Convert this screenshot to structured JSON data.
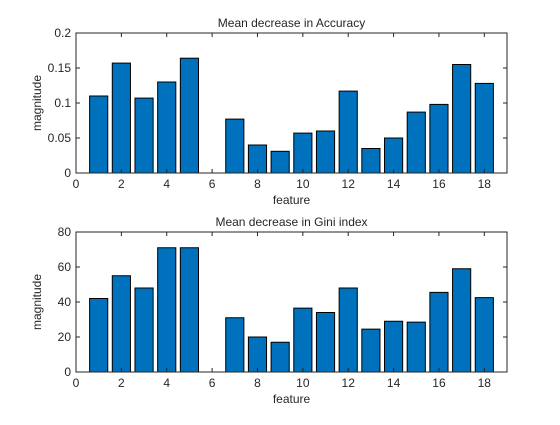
{
  "chart_data": [
    {
      "type": "bar",
      "title": "Mean decrease in Accuracy",
      "xlabel": "feature",
      "ylabel": "magnitude",
      "xlim": [
        0,
        19
      ],
      "ylim": [
        0,
        0.2
      ],
      "xticks": [
        0,
        2,
        4,
        6,
        8,
        10,
        12,
        14,
        16,
        18
      ],
      "yticks": [
        0,
        0.05,
        0.1,
        0.15,
        0.2
      ],
      "ytick_labels": [
        "0",
        "0.05",
        "0.1",
        "0.15",
        "0.2"
      ],
      "grid": false,
      "bar_color": "#0072BD",
      "x": [
        1,
        2,
        3,
        4,
        5,
        7,
        8,
        9,
        10,
        11,
        12,
        13,
        14,
        15,
        16,
        17,
        18
      ],
      "values": [
        0.11,
        0.157,
        0.107,
        0.13,
        0.164,
        0.077,
        0.04,
        0.031,
        0.057,
        0.06,
        0.117,
        0.035,
        0.05,
        0.087,
        0.098,
        0.155,
        0.128
      ]
    },
    {
      "type": "bar",
      "title": "Mean decrease in Gini index",
      "xlabel": "feature",
      "ylabel": "magnitude",
      "xlim": [
        0,
        19
      ],
      "ylim": [
        0,
        80
      ],
      "xticks": [
        0,
        2,
        4,
        6,
        8,
        10,
        12,
        14,
        16,
        18
      ],
      "yticks": [
        0,
        20,
        40,
        60,
        80
      ],
      "ytick_labels": [
        "0",
        "20",
        "40",
        "60",
        "80"
      ],
      "grid": false,
      "bar_color": "#0072BD",
      "x": [
        1,
        2,
        3,
        4,
        5,
        7,
        8,
        9,
        10,
        11,
        12,
        13,
        14,
        15,
        16,
        17,
        18
      ],
      "values": [
        42,
        55,
        48,
        71,
        71,
        31,
        20,
        17,
        36.5,
        34,
        48,
        24.5,
        29,
        28.5,
        45.5,
        59,
        42.5
      ]
    }
  ]
}
